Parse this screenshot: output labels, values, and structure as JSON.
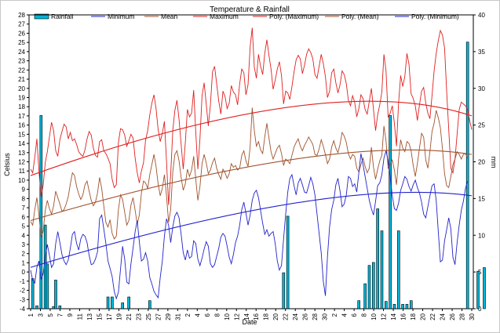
{
  "chart_data": {
    "type": "line",
    "title": "Temperature & Rainfall",
    "xlabel": "Date",
    "ylabel_left": "Celsius",
    "ylabel_right": "mm",
    "y_left_range": [
      -4,
      28
    ],
    "y_right_range": [
      0,
      40
    ],
    "x_tick_labels": [
      "1",
      "3",
      "5",
      "7",
      "9",
      "11",
      "13",
      "15",
      "17",
      "19",
      "21",
      "23",
      "25",
      "27",
      "29",
      "31",
      "2",
      "4",
      "6",
      "8",
      "10",
      "12",
      "14",
      "16",
      "18",
      "20",
      "22",
      "24",
      "26",
      "28",
      "30",
      "2",
      "4",
      "6",
      "8",
      "10",
      "12",
      "14",
      "16",
      "18",
      "20",
      "22",
      "24",
      "26",
      "28",
      "30"
    ],
    "legend": [
      {
        "label": "Rainfall",
        "kind": "bar",
        "color": "#00b4d8"
      },
      {
        "label": "Minimum",
        "kind": "line",
        "color": "#2222cc"
      },
      {
        "label": "Mean",
        "kind": "line",
        "color": "#a0522d"
      },
      {
        "label": "Maximum",
        "kind": "line",
        "color": "#e02020"
      },
      {
        "label": "Poly. (Maximum)",
        "kind": "line",
        "color": "#e02020"
      },
      {
        "label": "Poly. (Mean)",
        "kind": "line",
        "color": "#a0522d"
      },
      {
        "label": "Poly. (Minimum)",
        "kind": "line",
        "color": "#2222cc"
      }
    ],
    "series": [
      {
        "name": "Maximum",
        "axis": "left",
        "color": "#e02020",
        "values": [
          11.2,
          10.8,
          12.5,
          14.5,
          11,
          8.2,
          9.4,
          11.9,
          13.1,
          14.7,
          16.3,
          15.4,
          13.2,
          12.6,
          14.4,
          15.3,
          16.1,
          15.8,
          14.5,
          15.2,
          14.3,
          14.5,
          13.9,
          13.1,
          12.8,
          12.6,
          13.3,
          14.5,
          15.3,
          14.9,
          13.5,
          12.7,
          12.5,
          14.2,
          14.4,
          13.2,
          12.9,
          12.4,
          11.8,
          10.1,
          9.2,
          9.5,
          14.1,
          15.6,
          15.5,
          14.9,
          13.7,
          14.3,
          15,
          14.6,
          12.4,
          10.8,
          9.7,
          11,
          11.9,
          14.4,
          15.4,
          17.1,
          18.4,
          19.3,
          17.8,
          15.5,
          14.2,
          15.1,
          16.4,
          12.1,
          7.3,
          10.6,
          15.4,
          17.6,
          18.7,
          16.6,
          13.9,
          11.2,
          14.1,
          17.7,
          16.9,
          17.3,
          19.8,
          15.2,
          11.2,
          14.5,
          19.2,
          20.6,
          18.3,
          15.9,
          18.2,
          21.8,
          22.4,
          20.5,
          18.6,
          17.2,
          19.7,
          19.1,
          17.8,
          18.4,
          20.3,
          19.6,
          19.3,
          18.2,
          20.5,
          22.1,
          21.7,
          19.3,
          20.4,
          24.5,
          26.6,
          22.3,
          21.1,
          23.7,
          22.4,
          21.5,
          23.8,
          25.3,
          23.6,
          22.1,
          19.9,
          20.9,
          22.1,
          22.9,
          21.4,
          18.3,
          19.7,
          19.5,
          18.8,
          20.2,
          21.8,
          23.1,
          23.6,
          23.2,
          21.6,
          22.5,
          23.7,
          24.3,
          23.9,
          23.2,
          21.5,
          21.1,
          22.4,
          23.7,
          22.7,
          21.3,
          19,
          19.7,
          21.7,
          22.1,
          20.6,
          19.5,
          20.4,
          21.9,
          21.5,
          20.5,
          18.7,
          18.1,
          19.2,
          18.5,
          16.9,
          17.8,
          19.3,
          18.9,
          17.7,
          17.2,
          18.6,
          20,
          17.7,
          15.4,
          17.1,
          18.2,
          19.6,
          23.7,
          21.9,
          16.9,
          17.3,
          18.1,
          16.2,
          13.7,
          18.4,
          21.4,
          20.2,
          21.3,
          23.8,
          22.6,
          19.4,
          18.9,
          18.1,
          16.5,
          18.2,
          19.7,
          20.1,
          18.4,
          17.3,
          16.7,
          19.2,
          21.9,
          23.8,
          25.2,
          26.3,
          25.8,
          24.4,
          19.7,
          15.5,
          11.3,
          10.8,
          12.3,
          15,
          17.7,
          18.5,
          18.3,
          18.1,
          17.7,
          16.5,
          15.5
        ]
      },
      {
        "name": "Mean",
        "axis": "left",
        "color": "#a0522d",
        "values": [
          5.5,
          5.1,
          6.8,
          8.1,
          6.2,
          3.8,
          4.4,
          6.7,
          7.8,
          6.9,
          6.3,
          7.2,
          8.8,
          8.1,
          7.4,
          6.6,
          6.8,
          7.4,
          8.2,
          9.6,
          10.8,
          10.5,
          9.3,
          8.5,
          7.9,
          8.4,
          9.5,
          9.9,
          8.8,
          7.8,
          7.2,
          7.6,
          8.6,
          10.3,
          9.1,
          7.2,
          5.4,
          4.9,
          5.7,
          4.2,
          3.6,
          3.9,
          6.8,
          8.4,
          7.9,
          6.5,
          5.1,
          5.6,
          7.3,
          8.1,
          6.7,
          5.2,
          6.2,
          8.6,
          9.9,
          9.7,
          9.1,
          10.6,
          11.7,
          12.8,
          11.5,
          9.6,
          8.3,
          9.1,
          10.6,
          8.3,
          5.4,
          6.8,
          10.9,
          12.8,
          13.2,
          12.1,
          10.3,
          8.9,
          9.6,
          11.2,
          10.4,
          11.1,
          12.6,
          10.1,
          7.8,
          9.3,
          11.8,
          12.8,
          11.9,
          10.7,
          11.1,
          11.9,
          12.4,
          11.3,
          10.6,
          10.1,
          11.2,
          10.8,
          10.2,
          10.7,
          11.8,
          11.4,
          11.6,
          11.1,
          11.3,
          12.7,
          13.2,
          12.1,
          11.5,
          13.6,
          17.9,
          15.4,
          13.7,
          14.2,
          13.3,
          12.9,
          14.7,
          16.2,
          14.6,
          13.1,
          12.3,
          12.9,
          13.5,
          13.8,
          12.9,
          11.6,
          12.3,
          12.1,
          11.8,
          12.7,
          13.6,
          14.1,
          14.5,
          13.7,
          13.2,
          13.8,
          14.2,
          14.7,
          14.3,
          13.9,
          12.8,
          12.7,
          13.4,
          14.4,
          13.7,
          12.8,
          11.8,
          12.3,
          13.6,
          14.3,
          13.5,
          13,
          13.9,
          15.2,
          14.8,
          14.1,
          12.9,
          12.3,
          12.8,
          12.6,
          11.3,
          10.9,
          11.7,
          12.4,
          11.5,
          10.8,
          11.3,
          13.6,
          11.4,
          10.1,
          11.2,
          12.1,
          12.7,
          15.9,
          14.3,
          11.3,
          11.7,
          12.2,
          11.1,
          9.5,
          12.3,
          14.4,
          13.5,
          13.1,
          14.2,
          14,
          13.2,
          11.6,
          10.4,
          11.8,
          13.5,
          15.1,
          14.7,
          12.2,
          11.3,
          13.1,
          15.3,
          16.2,
          17.6,
          16.8,
          15.7,
          13.4,
          10.7,
          9.4,
          9.2,
          10.4,
          11.7,
          12.3,
          13.1,
          12.8,
          12.3,
          12.8,
          12.9,
          12.4
        ]
      },
      {
        "name": "Minimum",
        "axis": "left",
        "color": "#2222cc",
        "values": [
          0.2,
          -0.9,
          -1.2,
          0.5,
          1.2,
          -0.8,
          -0.2,
          1.6,
          3,
          1.8,
          0.5,
          0.9,
          3.1,
          4.4,
          3.2,
          1.9,
          1.2,
          0.8,
          1.3,
          2.6,
          4.1,
          4.4,
          3.1,
          2.4,
          3.6,
          4.1,
          3.9,
          3.2,
          1.8,
          0.8,
          0.9,
          1.4,
          2.2,
          5.8,
          6.2,
          4.7,
          3.1,
          1.2,
          0.4,
          -0.5,
          -2.1,
          -2.9,
          -2.2,
          0.3,
          2.8,
          1.4,
          -1.1,
          -1.3,
          0.9,
          2.6,
          4.4,
          5.6,
          3.3,
          1.2,
          1.4,
          2.1,
          1.2,
          -0.6,
          -1.3,
          -2.1,
          -2.5,
          -2.8,
          -0.6,
          1.2,
          3.9,
          5.8,
          5.1,
          3.2,
          4.9,
          6.1,
          6.5,
          5.9,
          4.1,
          2.1,
          1.3,
          2.4,
          1.5,
          1.7,
          3.4,
          3.1,
          1.4,
          0.7,
          1.5,
          2.5,
          3.3,
          2.8,
          0.9,
          0.5,
          0.8,
          1.7,
          2.6,
          3.8,
          4.2,
          3.9,
          2.8,
          1.6,
          0.9,
          1.9,
          3.2,
          3.9,
          5.1,
          6.8,
          7.6,
          6.4,
          5.1,
          6.2,
          7.8,
          8.6,
          8.9,
          8.1,
          6.7,
          5.3,
          4.1,
          4.6,
          3.9,
          4.2,
          4.4,
          3.1,
          1.2,
          0.2,
          0.7,
          3.6,
          6.3,
          8.7,
          10.2,
          10.6,
          9.4,
          8.4,
          9.7,
          10.2,
          9.5,
          8.7,
          8.6,
          9.4,
          10.3,
          9.6,
          8.4,
          6.3,
          4.2,
          2.1,
          -1,
          -2.6,
          1.7,
          4.9,
          6.8,
          7.8,
          9.5,
          10.2,
          8.8,
          7.1,
          7.4,
          8.4,
          10.4,
          10.2,
          9.3,
          9.6,
          8.7,
          10.8,
          12.9,
          11.7,
          10.4,
          9.1,
          7.8,
          6.9,
          6.2,
          7.7,
          9.4,
          9.7,
          10.6,
          12.4,
          13.2,
          12.1,
          10.4,
          8.3,
          6.9,
          6.7,
          7.5,
          8.9,
          9.6,
          10.4,
          10.1,
          9.3,
          8.8,
          9.5,
          10,
          9.2,
          8.6,
          7.6,
          6.3,
          5.9,
          7.1,
          8.3,
          9.4,
          9.6,
          7.8,
          4.4,
          1.1,
          1.3,
          3.4,
          4.6,
          5.9,
          4.7,
          1.6,
          0.8,
          3.2,
          5.1,
          6.7,
          7.7,
          9.1,
          9.9
        ]
      },
      {
        "name": "Poly. (Maximum)",
        "axis": "left",
        "color": "#e02020",
        "poly_endpoints": {
          "start": 10.5,
          "peak": 19.2,
          "end": 17
        }
      },
      {
        "name": "Poly. (Mean)",
        "axis": "left",
        "color": "#a0522d",
        "poly_endpoints": {
          "start": 5.6,
          "peak": 13.1,
          "end": 12.8
        }
      },
      {
        "name": "Poly. (Minimum)",
        "axis": "left",
        "color": "#2222cc",
        "poly_endpoints": {
          "start": 0.5,
          "peak": 8.3,
          "end": 8.3
        }
      },
      {
        "name": "Rainfall",
        "axis": "right",
        "color": "#00b4d8",
        "bars": [
          {
            "day": 2,
            "mm": 4.1
          },
          {
            "day": 4,
            "mm": 0.4
          },
          {
            "day": 6,
            "mm": 26.3
          },
          {
            "day": 8,
            "mm": 11.4
          },
          {
            "day": 9,
            "mm": 6.1
          },
          {
            "day": 12,
            "mm": 0.3
          },
          {
            "day": 13,
            "mm": 3.9
          },
          {
            "day": 15,
            "mm": 0.4
          },
          {
            "day": 38,
            "mm": 1.6
          },
          {
            "day": 40,
            "mm": 1.6
          },
          {
            "day": 45,
            "mm": 0.8
          },
          {
            "day": 48,
            "mm": 1.6
          },
          {
            "day": 58,
            "mm": 1.1
          },
          {
            "day": 122,
            "mm": 4.9
          },
          {
            "day": 124,
            "mm": 12.6
          },
          {
            "day": 158,
            "mm": 1.1
          },
          {
            "day": 161,
            "mm": 3.4
          },
          {
            "day": 163,
            "mm": 5.9
          },
          {
            "day": 165,
            "mm": 6.3
          },
          {
            "day": 167,
            "mm": 13.6
          },
          {
            "day": 169,
            "mm": 10.6
          },
          {
            "day": 171,
            "mm": 1.0
          },
          {
            "day": 173,
            "mm": 26.3
          },
          {
            "day": 175,
            "mm": 0.6
          },
          {
            "day": 177,
            "mm": 10.6
          },
          {
            "day": 179,
            "mm": 0.6
          },
          {
            "day": 181,
            "mm": 0.6
          },
          {
            "day": 183,
            "mm": 1.1
          },
          {
            "day": 210,
            "mm": 36.3
          },
          {
            "day": 215,
            "mm": 5.1
          },
          {
            "day": 218,
            "mm": 5.6
          }
        ]
      }
    ],
    "grid": false,
    "legend_position": "top"
  }
}
